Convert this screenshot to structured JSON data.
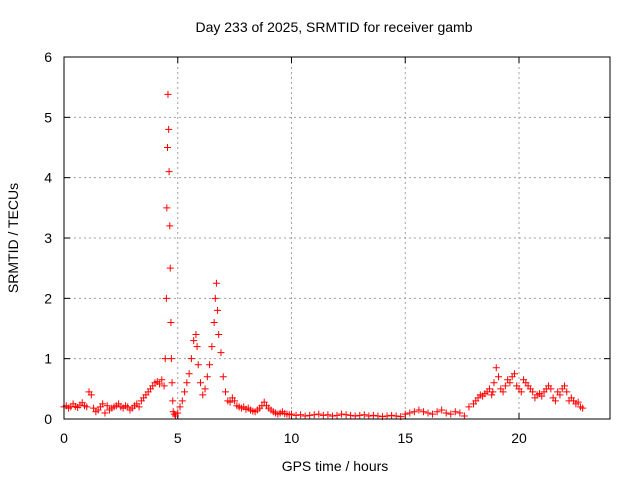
{
  "chart_data": {
    "type": "scatter",
    "title": "Day 233 of 2025, SRMTID for receiver gamb",
    "xlabel": "GPS time / hours",
    "ylabel": "SRMTID / TECUs",
    "xlim": [
      0,
      24
    ],
    "ylim": [
      0,
      6
    ],
    "xticks": [
      0,
      5,
      10,
      15,
      20
    ],
    "xtick_labels": [
      "0",
      "5",
      "10",
      "15",
      "20"
    ],
    "yticks": [
      0,
      1,
      2,
      3,
      4,
      5,
      6
    ],
    "ytick_labels": [
      "0",
      "1",
      "2",
      "3",
      "4",
      "5",
      "6"
    ],
    "grid": true,
    "legend": "none",
    "marker": "+",
    "color": "#ff0000",
    "series": [
      {
        "name": "SRMTID",
        "x": [
          0.0,
          0.1,
          0.2,
          0.3,
          0.4,
          0.5,
          0.6,
          0.7,
          0.8,
          0.9,
          1.0,
          1.1,
          1.2,
          1.3,
          1.4,
          1.5,
          1.6,
          1.7,
          1.8,
          1.9,
          2.0,
          2.1,
          2.2,
          2.3,
          2.4,
          2.5,
          2.6,
          2.7,
          2.8,
          2.9,
          3.0,
          3.1,
          3.2,
          3.3,
          3.4,
          3.5,
          3.6,
          3.7,
          3.8,
          3.9,
          4.0,
          4.1,
          4.2,
          4.3,
          4.4,
          4.45,
          4.5,
          4.52,
          4.55,
          4.57,
          4.6,
          4.62,
          4.65,
          4.67,
          4.7,
          4.72,
          4.75,
          4.78,
          4.8,
          4.85,
          4.9,
          5.0,
          5.1,
          5.2,
          5.3,
          5.4,
          5.5,
          5.6,
          5.7,
          5.8,
          5.85,
          5.9,
          6.0,
          6.1,
          6.2,
          6.3,
          6.4,
          6.5,
          6.6,
          6.65,
          6.7,
          6.75,
          6.8,
          6.9,
          7.0,
          7.1,
          7.2,
          7.3,
          7.4,
          7.5,
          7.6,
          7.7,
          7.8,
          7.9,
          8.0,
          8.1,
          8.2,
          8.3,
          8.4,
          8.5,
          8.6,
          8.7,
          8.8,
          8.9,
          9.0,
          9.1,
          9.2,
          9.3,
          9.4,
          9.5,
          9.6,
          9.7,
          9.8,
          9.9,
          10.0,
          10.2,
          10.4,
          10.6,
          10.8,
          11.0,
          11.2,
          11.4,
          11.6,
          11.8,
          12.0,
          12.2,
          12.4,
          12.6,
          12.8,
          13.0,
          13.2,
          13.4,
          13.6,
          13.8,
          14.0,
          14.2,
          14.4,
          14.6,
          14.8,
          15.0,
          15.2,
          15.4,
          15.6,
          15.8,
          16.0,
          16.2,
          16.4,
          16.6,
          16.8,
          17.0,
          17.2,
          17.4,
          17.6,
          17.8,
          18.0,
          18.1,
          18.2,
          18.3,
          18.4,
          18.5,
          18.6,
          18.7,
          18.8,
          18.85,
          18.9,
          19.0,
          19.1,
          19.2,
          19.3,
          19.4,
          19.5,
          19.6,
          19.7,
          19.8,
          19.9,
          20.0,
          20.1,
          20.2,
          20.3,
          20.4,
          20.5,
          20.6,
          20.7,
          20.8,
          20.9,
          21.0,
          21.1,
          21.2,
          21.3,
          21.4,
          21.5,
          21.6,
          21.7,
          21.8,
          21.9,
          22.0,
          22.1,
          22.2,
          22.3,
          22.4,
          22.5,
          22.6,
          22.7,
          22.8
        ],
        "y": [
          0.2,
          0.22,
          0.18,
          0.2,
          0.25,
          0.21,
          0.19,
          0.23,
          0.27,
          0.22,
          0.2,
          0.45,
          0.4,
          0.18,
          0.12,
          0.15,
          0.2,
          0.25,
          0.1,
          0.22,
          0.15,
          0.18,
          0.2,
          0.22,
          0.25,
          0.2,
          0.18,
          0.22,
          0.2,
          0.15,
          0.18,
          0.22,
          0.25,
          0.2,
          0.3,
          0.35,
          0.4,
          0.45,
          0.5,
          0.55,
          0.6,
          0.62,
          0.58,
          0.65,
          0.55,
          1.0,
          2.0,
          3.5,
          4.5,
          5.38,
          4.8,
          4.1,
          3.2,
          2.5,
          1.6,
          1.0,
          0.6,
          0.3,
          0.12,
          0.08,
          0.05,
          0.1,
          0.2,
          0.3,
          0.45,
          0.6,
          0.75,
          1.0,
          1.3,
          1.4,
          1.2,
          0.9,
          0.6,
          0.4,
          0.5,
          0.7,
          0.9,
          1.2,
          1.6,
          2.0,
          2.25,
          1.8,
          1.4,
          1.1,
          0.7,
          0.45,
          0.3,
          0.28,
          0.35,
          0.3,
          0.22,
          0.2,
          0.18,
          0.2,
          0.16,
          0.18,
          0.15,
          0.13,
          0.12,
          0.15,
          0.18,
          0.22,
          0.28,
          0.22,
          0.18,
          0.15,
          0.12,
          0.1,
          0.08,
          0.1,
          0.12,
          0.09,
          0.08,
          0.07,
          0.08,
          0.06,
          0.07,
          0.05,
          0.06,
          0.07,
          0.08,
          0.06,
          0.07,
          0.05,
          0.06,
          0.08,
          0.07,
          0.06,
          0.05,
          0.06,
          0.07,
          0.05,
          0.06,
          0.05,
          0.04,
          0.05,
          0.06,
          0.05,
          0.04,
          0.08,
          0.1,
          0.12,
          0.15,
          0.12,
          0.1,
          0.08,
          0.12,
          0.15,
          0.1,
          0.08,
          0.12,
          0.1,
          0.05,
          0.2,
          0.25,
          0.3,
          0.35,
          0.4,
          0.38,
          0.42,
          0.45,
          0.5,
          0.4,
          0.45,
          0.6,
          0.85,
          0.7,
          0.5,
          0.45,
          0.55,
          0.65,
          0.6,
          0.7,
          0.75,
          0.55,
          0.5,
          0.45,
          0.65,
          0.6,
          0.55,
          0.5,
          0.45,
          0.35,
          0.4,
          0.42,
          0.38,
          0.45,
          0.5,
          0.55,
          0.5,
          0.35,
          0.3,
          0.45,
          0.4,
          0.5,
          0.55,
          0.45,
          0.3,
          0.35,
          0.3,
          0.25,
          0.28,
          0.2,
          0.18
        ]
      }
    ]
  }
}
